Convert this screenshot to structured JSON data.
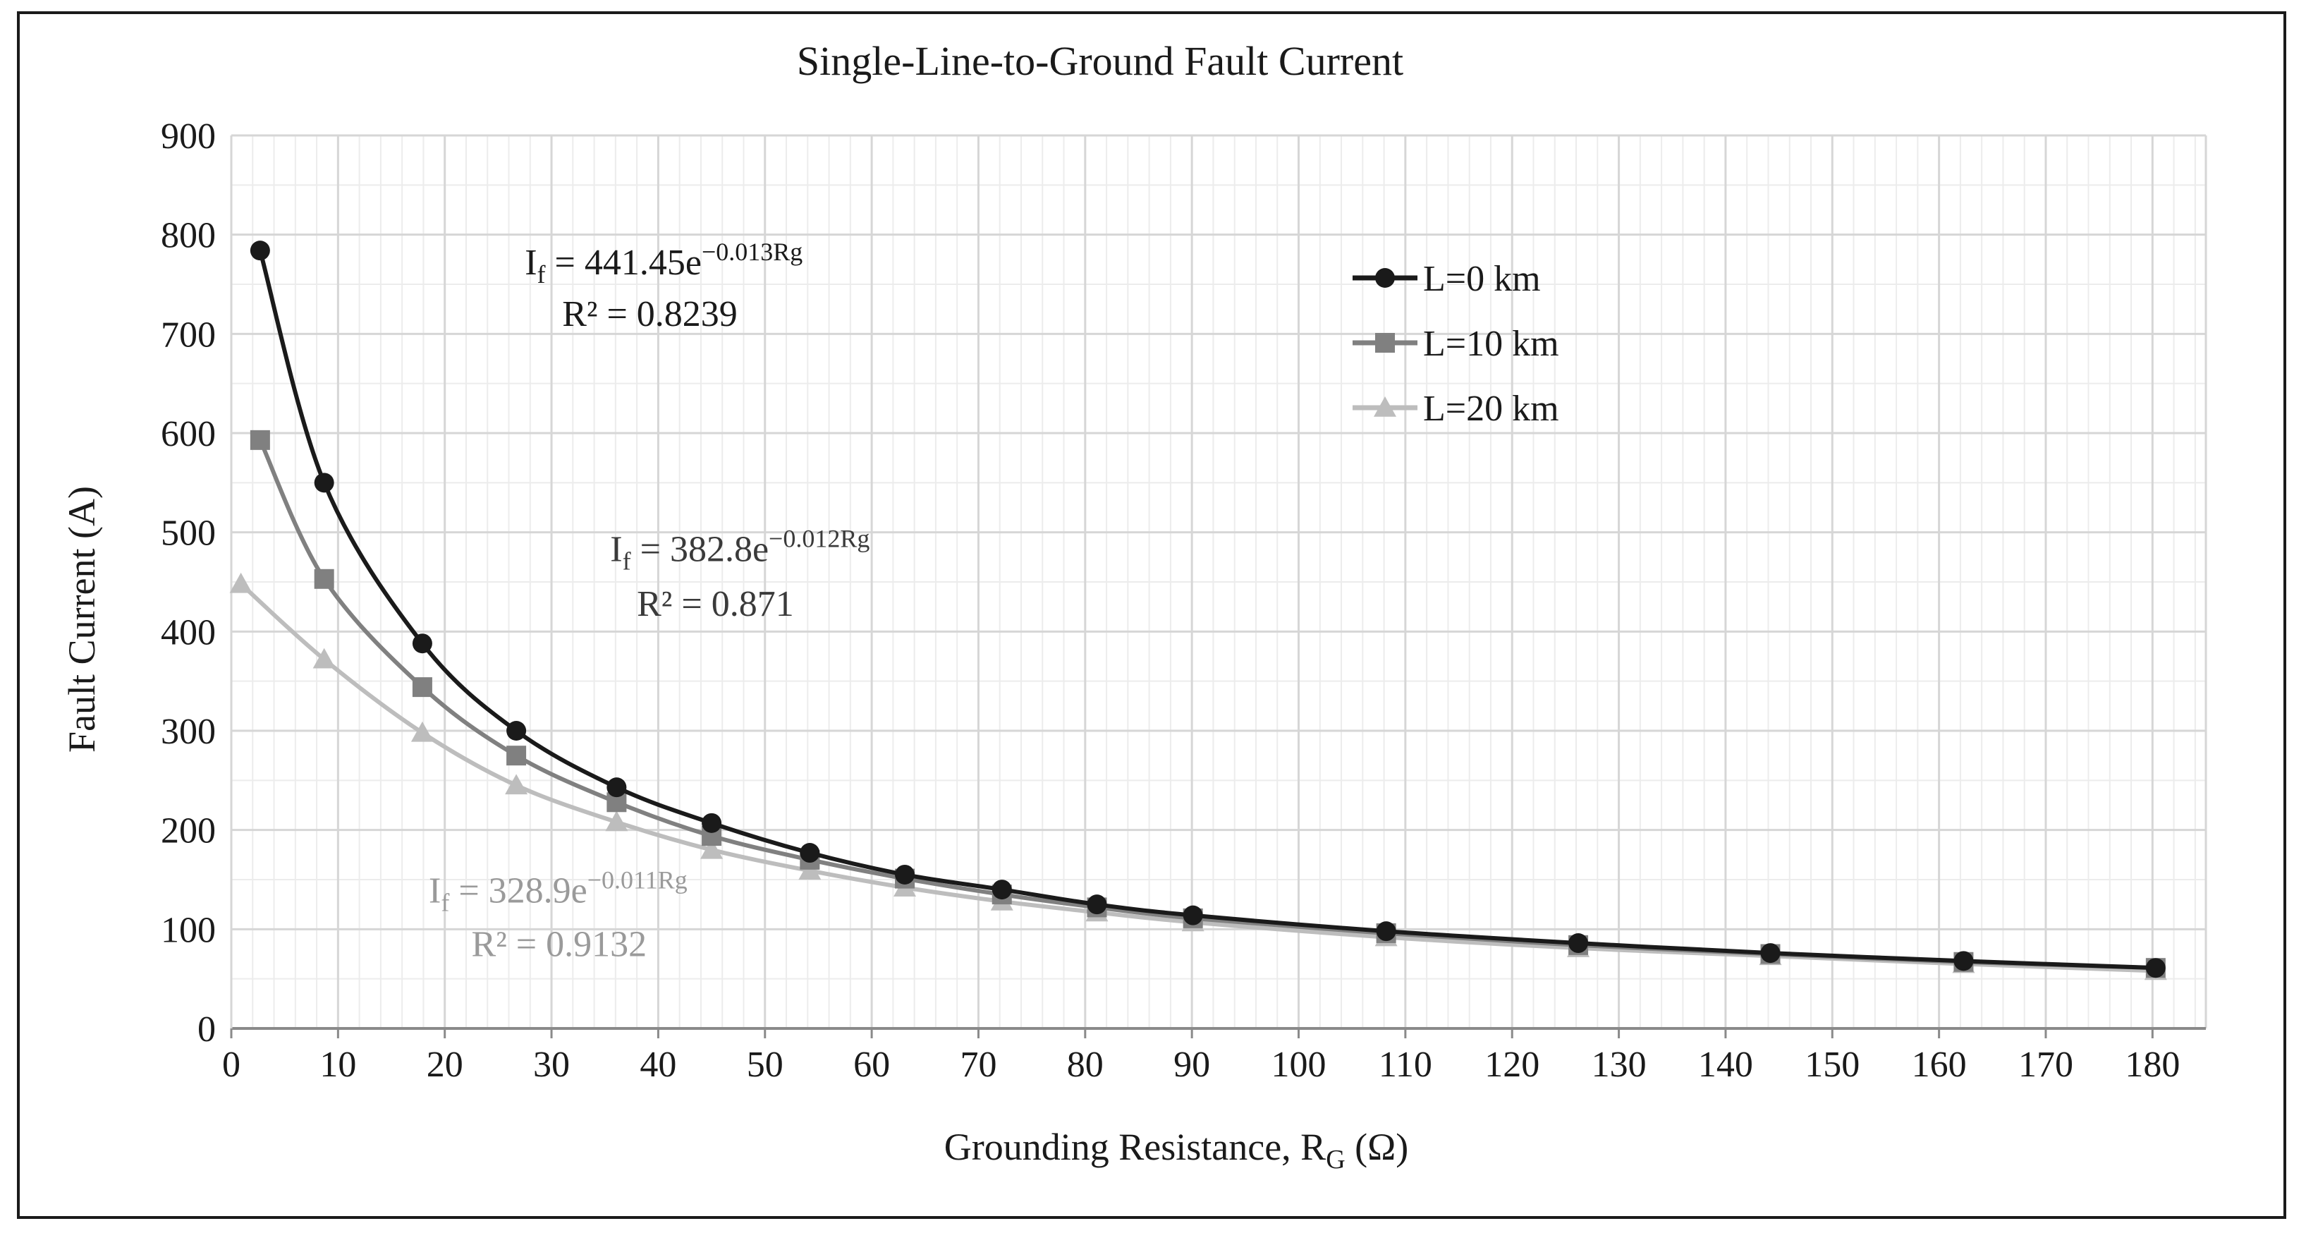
{
  "chart_data": {
    "type": "line",
    "title": "Single-Line-to-Ground Fault Current",
    "xlabel": "Grounding Resistance, R",
    "xlabel_subscript": "G",
    "xlabel_unit": " (Ω)",
    "ylabel": "Fault Current (A)",
    "xlim": [
      0,
      185
    ],
    "ylim": [
      0,
      900
    ],
    "xticks": [
      0,
      10,
      20,
      30,
      40,
      50,
      60,
      70,
      80,
      90,
      100,
      110,
      120,
      130,
      140,
      150,
      160,
      170,
      180
    ],
    "yticks": [
      0,
      100,
      200,
      300,
      400,
      500,
      600,
      700,
      800,
      900
    ],
    "grid": "major and minor",
    "legend_position": "top-right",
    "x": [
      0.9,
      2.7,
      8.7,
      17.9,
      26.7,
      36.1,
      45,
      54.2,
      63.1,
      72.2,
      81.1,
      90.1,
      108.2,
      126.2,
      144.2,
      162.3,
      180.3
    ],
    "series": [
      {
        "name": "L=0 km",
        "marker": "circle",
        "color": "#1a1a1a",
        "values": [
          null,
          784,
          550,
          388,
          300,
          243,
          207,
          177,
          155,
          140,
          125,
          114,
          98,
          86,
          76,
          68,
          61
        ]
      },
      {
        "name": "L=10 km",
        "marker": "square",
        "color": "#808080",
        "values": [
          null,
          593,
          453,
          344,
          275,
          228,
          194,
          170,
          151,
          135,
          122,
          111,
          96,
          84,
          75,
          67,
          61
        ]
      },
      {
        "name": "L=20 km",
        "marker": "triangle",
        "color": "#bdbdbd",
        "values": [
          448,
          null,
          372,
          298,
          245,
          208,
          180,
          159,
          142,
          128,
          117,
          107,
          92,
          81,
          73,
          65,
          58
        ]
      }
    ],
    "annotations": [
      {
        "lhs": "I",
        "lhs_sub": "f",
        "rhs": " = 441.45e",
        "exponent": "−0.013Rg",
        "r2": "R² = 0.8239",
        "color": "#1a1a1a"
      },
      {
        "lhs": "I",
        "lhs_sub": "f",
        "rhs": " = 382.8e",
        "exponent": "−0.012Rg",
        "r2": "R² = 0.871",
        "color": "#3a3a3a"
      },
      {
        "lhs": "I",
        "lhs_sub": "f",
        "rhs": " = 328.9e",
        "exponent": "−0.011Rg",
        "r2": "R² = 0.9132",
        "color": "#9a9a9a"
      }
    ]
  }
}
